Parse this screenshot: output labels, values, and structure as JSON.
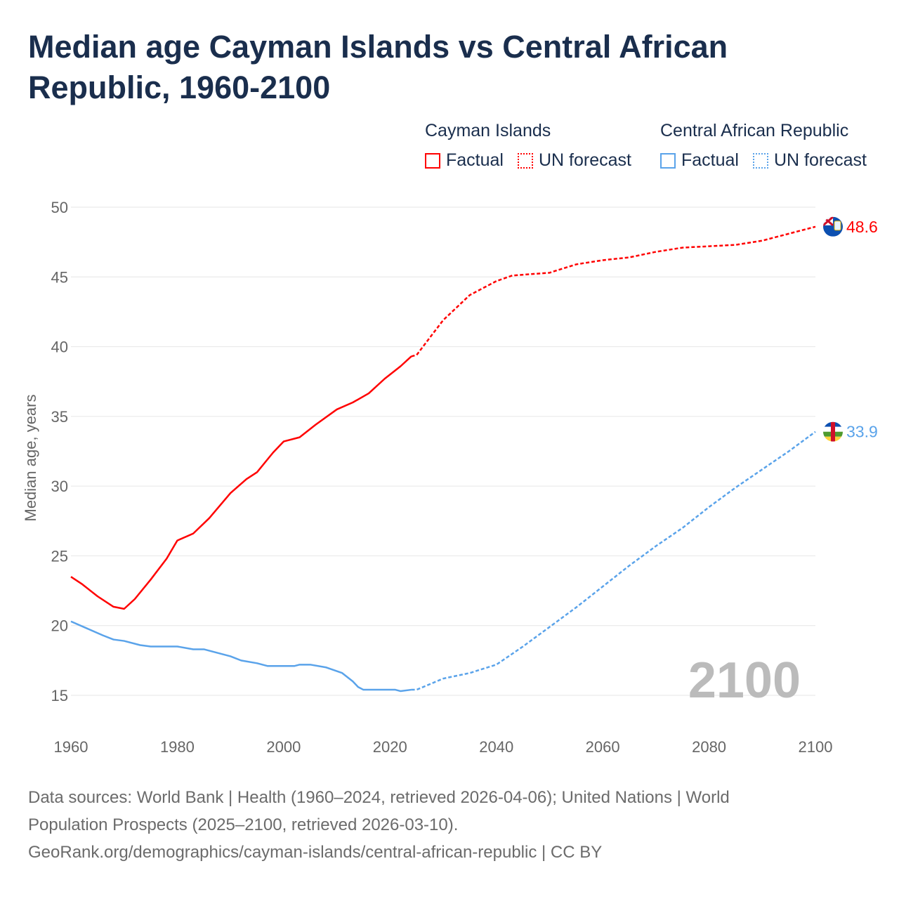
{
  "colors": {
    "cayman": "#ff0000",
    "car": "#5aa3ea",
    "grid": "#e6e6e6",
    "axis_text": "#666666",
    "year_watermark": "#bbbbbb"
  },
  "chart_data": {
    "type": "line",
    "title": "Median age Cayman Islands vs Central African Republic, 1960-2100",
    "xlabel": "",
    "ylabel": "Median age, years",
    "xlim": [
      1960,
      2100
    ],
    "ylim": [
      15,
      50
    ],
    "xticks": [
      1960,
      1980,
      2000,
      2020,
      2040,
      2060,
      2080,
      2100
    ],
    "yticks": [
      15,
      20,
      25,
      30,
      35,
      40,
      45,
      50
    ],
    "grid": true,
    "legend_position": "top-right",
    "current_year_label": "2100",
    "legend": {
      "groups": [
        {
          "name": "Cayman Islands",
          "factual": "Factual",
          "forecast": "UN forecast"
        },
        {
          "name": "Central African Republic",
          "factual": "Factual",
          "forecast": "UN forecast"
        }
      ]
    },
    "series": [
      {
        "name": "Cayman Islands",
        "end_label": "48.6",
        "flag": "cayman-islands-flag",
        "factual": {
          "x": [
            1960,
            1962,
            1965,
            1968,
            1970,
            1972,
            1975,
            1978,
            1980,
            1983,
            1986,
            1990,
            1993,
            1995,
            1998,
            2000,
            2003,
            2006,
            2010,
            2013,
            2016,
            2019,
            2022,
            2024
          ],
          "y": [
            23.5,
            23.0,
            22.1,
            21.35,
            21.2,
            21.9,
            23.3,
            24.8,
            26.1,
            26.6,
            27.7,
            29.5,
            30.5,
            31.0,
            32.4,
            33.2,
            33.5,
            34.4,
            35.5,
            36.0,
            36.65,
            37.7,
            38.6,
            39.3
          ]
        },
        "forecast": {
          "x": [
            2024,
            2025,
            2030,
            2035,
            2040,
            2043,
            2050,
            2055,
            2060,
            2065,
            2070,
            2075,
            2080,
            2085,
            2090,
            2095,
            2100
          ],
          "y": [
            39.3,
            39.4,
            41.9,
            43.7,
            44.7,
            45.1,
            45.3,
            45.9,
            46.2,
            46.4,
            46.8,
            47.1,
            47.2,
            47.3,
            47.6,
            48.1,
            48.6
          ]
        }
      },
      {
        "name": "Central African Republic",
        "end_label": "33.9",
        "flag": "central-african-republic-flag",
        "factual": {
          "x": [
            1960,
            1963,
            1966,
            1968,
            1970,
            1973,
            1975,
            1980,
            1983,
            1985,
            1990,
            1992,
            1995,
            1997,
            2002,
            2003,
            2005,
            2008,
            2011,
            2013,
            2014,
            2015,
            2021,
            2022,
            2024
          ],
          "y": [
            20.3,
            19.8,
            19.3,
            19.0,
            18.9,
            18.6,
            18.5,
            18.5,
            18.3,
            18.3,
            17.8,
            17.5,
            17.3,
            17.1,
            17.1,
            17.2,
            17.2,
            17.0,
            16.6,
            16.0,
            15.6,
            15.4,
            15.4,
            15.3,
            15.4
          ]
        },
        "forecast": {
          "x": [
            2024,
            2025,
            2030,
            2035,
            2040,
            2045,
            2050,
            2055,
            2060,
            2065,
            2070,
            2075,
            2080,
            2085,
            2090,
            2095,
            2100
          ],
          "y": [
            15.4,
            15.4,
            16.2,
            16.6,
            17.2,
            18.5,
            19.9,
            21.3,
            22.8,
            24.3,
            25.7,
            27.0,
            28.5,
            29.9,
            31.2,
            32.5,
            33.9
          ]
        }
      }
    ]
  },
  "footer": {
    "line1": "Data sources: World Bank | Health (1960–2024, retrieved 2026-04-06); United Nations | World",
    "line2": "Population Prospects (2025–2100, retrieved 2026-03-10).",
    "line3": "GeoRank.org/demographics/cayman-islands/central-african-republic | CC BY"
  }
}
